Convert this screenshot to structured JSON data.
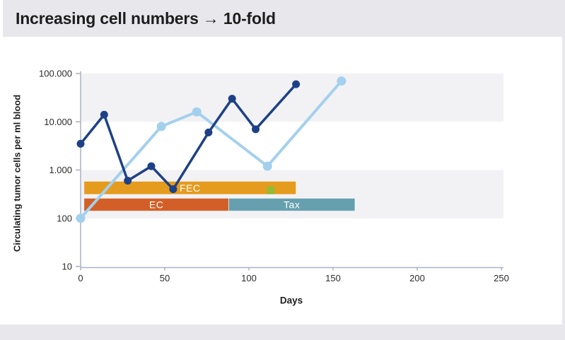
{
  "header": {
    "title": "Increasing cell numbers → 10-fold"
  },
  "chart_data": {
    "type": "line",
    "title": "Increasing cell numbers → 10-fold",
    "xlabel": "Days",
    "ylabel": "Circulating tumor cells per ml blood",
    "x_axis": {
      "min": 0,
      "max": 250,
      "tick_values": [
        0,
        50,
        100,
        150,
        200,
        250
      ],
      "tick_labels": [
        "0",
        "50",
        "100",
        "150",
        "200",
        "250"
      ]
    },
    "y_axis": {
      "scale": "log",
      "min": 10,
      "max": 100000,
      "tick_values": [
        100000,
        10000,
        1000,
        100,
        10
      ],
      "tick_labels": [
        "100.000",
        "10.000",
        "1.000",
        "100",
        "10"
      ]
    },
    "grid": "alternating-decade-bands",
    "legend": "none",
    "colors": {
      "band_gray": "#f2f2f5",
      "axis": "#a9b1c7",
      "page_band_gray": "#e8e8ec"
    },
    "series": [
      {
        "name": "ctc-series-dark-blue",
        "color": "#1e4186",
        "marker": "circle",
        "points": [
          [
            0,
            3500
          ],
          [
            14,
            14000
          ],
          [
            28,
            600
          ],
          [
            42,
            1200
          ],
          [
            55,
            400
          ],
          [
            76,
            6000
          ],
          [
            90,
            30000
          ],
          [
            104,
            7000
          ],
          [
            128,
            60000
          ]
        ]
      },
      {
        "name": "ctc-series-light-blue",
        "color": "#a3d0ed",
        "marker": "circle",
        "points": [
          [
            0,
            100
          ],
          [
            48,
            8000
          ],
          [
            69,
            16000
          ],
          [
            111,
            1200
          ],
          [
            155,
            70000
          ]
        ]
      }
    ],
    "treatment_bars": [
      {
        "label": "FEC",
        "color": "#e49b1e",
        "day_start": 2,
        "day_end": 128,
        "row": 0
      },
      {
        "label": "EC",
        "color": "#d25f27",
        "day_start": 2,
        "day_end": 88,
        "row": 1
      },
      {
        "label": "Tax",
        "color": "#66a0ae",
        "day_start": 88,
        "day_end": 163,
        "row": 1
      }
    ],
    "extra_marker": {
      "shape": "square",
      "color": "#95ba33",
      "day": 113,
      "value": 380
    }
  }
}
